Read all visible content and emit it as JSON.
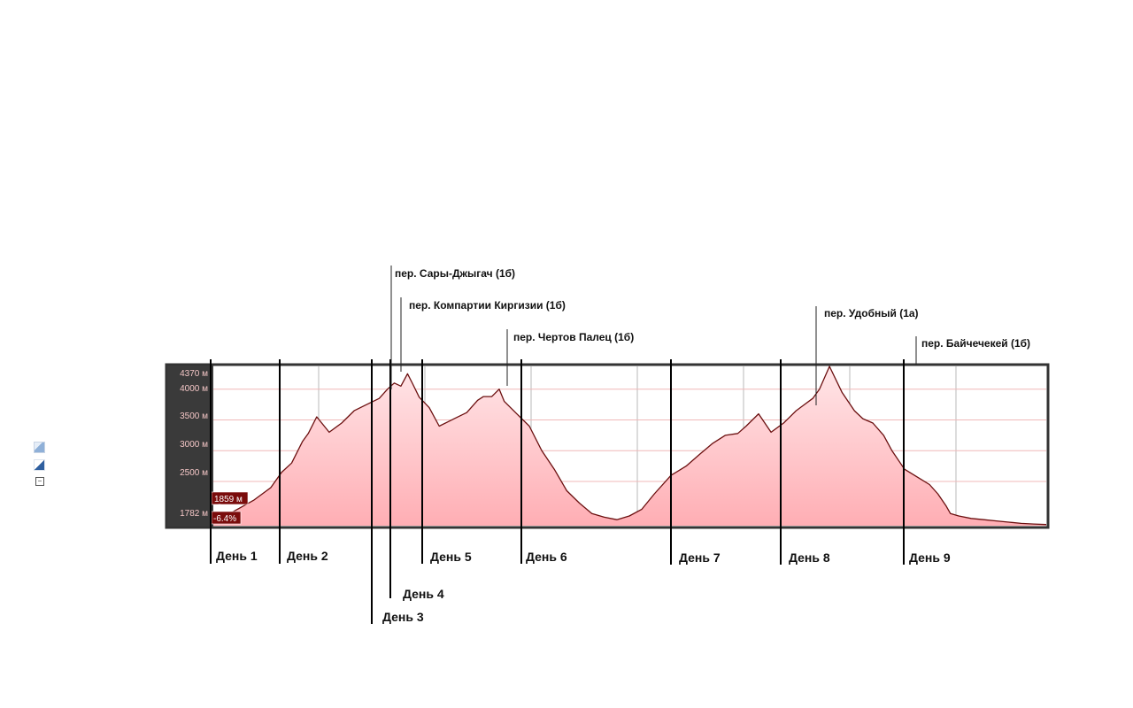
{
  "chart_data": {
    "type": "area",
    "title": "",
    "xlabel": "",
    "ylabel": "",
    "y_unit": "м",
    "ylim": [
      1782,
      4370
    ],
    "yticks": [
      {
        "value": 4370,
        "label": "4370 м"
      },
      {
        "value": 4000,
        "label": "4000 м"
      },
      {
        "value": 3500,
        "label": "3500 м"
      },
      {
        "value": 3000,
        "label": "3000 м"
      },
      {
        "value": 2500,
        "label": "2500 м"
      },
      {
        "value": 1782,
        "label": "1782 м"
      }
    ],
    "x_fraction": [
      0.0,
      0.01,
      0.03,
      0.05,
      0.07,
      0.083,
      0.095,
      0.108,
      0.115,
      0.125,
      0.14,
      0.155,
      0.17,
      0.185,
      0.2,
      0.21,
      0.218,
      0.226,
      0.234,
      0.24,
      0.248,
      0.26,
      0.272,
      0.29,
      0.305,
      0.318,
      0.325,
      0.335,
      0.344,
      0.35,
      0.365,
      0.38,
      0.395,
      0.41,
      0.425,
      0.44,
      0.455,
      0.47,
      0.485,
      0.5,
      0.515,
      0.53,
      0.55,
      0.568,
      0.585,
      0.6,
      0.615,
      0.63,
      0.64,
      0.655,
      0.67,
      0.685,
      0.7,
      0.71,
      0.72,
      0.728,
      0.74,
      0.755,
      0.77,
      0.78,
      0.792,
      0.805,
      0.815,
      0.83,
      0.848,
      0.86,
      0.87,
      0.88,
      0.885,
      0.895,
      0.91,
      0.925,
      0.94,
      0.955,
      0.97,
      0.985,
      1.0
    ],
    "elevation_m": [
      1830,
      1900,
      2050,
      2200,
      2400,
      2650,
      2800,
      3150,
      3280,
      3550,
      3300,
      3450,
      3650,
      3750,
      3850,
      4000,
      4100,
      4050,
      4250,
      4090,
      3870,
      3700,
      3400,
      3520,
      3620,
      3820,
      3880,
      3880,
      4000,
      3800,
      3600,
      3400,
      3000,
      2700,
      2350,
      2150,
      1980,
      1920,
      1880,
      1940,
      2050,
      2300,
      2600,
      2750,
      2950,
      3120,
      3250,
      3280,
      3400,
      3600,
      3300,
      3450,
      3650,
      3750,
      3850,
      4000,
      4370,
      3950,
      3650,
      3520,
      3450,
      3250,
      3000,
      2700,
      2550,
      2450,
      2300,
      2100,
      1980,
      1940,
      1900,
      1880,
      1860,
      1840,
      1820,
      1810,
      1800
    ],
    "cursor_readout": {
      "elevation": "1859 м",
      "grade": "-6.4%"
    },
    "days": [
      "День 1",
      "День 2",
      "День 3",
      "День 4",
      "День 5",
      "День 6",
      "День 7",
      "День 8",
      "День 9"
    ],
    "passes": [
      "пер. Сары-Джыгач (1б)",
      "пер. Компартии Киргизии (1б)",
      "пер. Чертов Палец (1б)",
      "пер. Удобный (1а)",
      "пер. Байчечекей (1б)"
    ],
    "colors": {
      "line": "#6b0f0f",
      "fill_top": "#ffe6e8",
      "fill_bottom": "#ffaeb4",
      "gridline_h": "#f0b8b8",
      "gridline_v": "#b8b8b8",
      "axis_panel": "#3a3a3a",
      "tick_text": "#f4c6c6",
      "readout_bg": "#7a0c0c",
      "marker_line": "#000000"
    },
    "grid": true,
    "legend": "none"
  }
}
